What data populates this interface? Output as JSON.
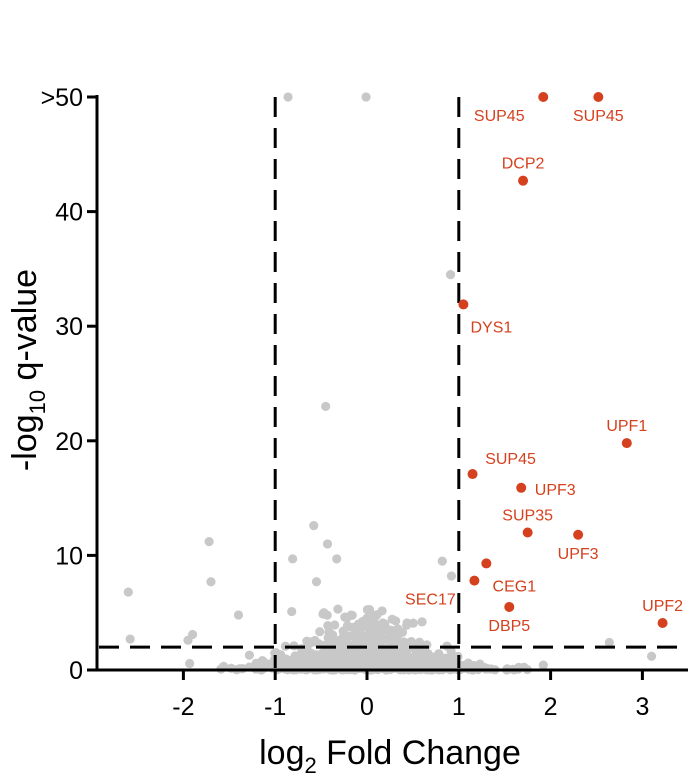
{
  "chart_data": {
    "type": "scatter",
    "title": "",
    "xlabel": {
      "base": "log",
      "sub": "2",
      "rest": " Fold Change"
    },
    "ylabel": {
      "base": "-log",
      "sub": "10",
      "rest": " q-value"
    },
    "xlim": [
      -2.7,
      3.3
    ],
    "ylim": [
      0,
      50
    ],
    "xticks": [
      {
        "value": -2,
        "label": "-2"
      },
      {
        "value": -1,
        "label": "-1"
      },
      {
        "value": 0,
        "label": "0"
      },
      {
        "value": 1,
        "label": "1"
      },
      {
        "value": 2,
        "label": "2"
      },
      {
        "value": 3,
        "label": "3"
      }
    ],
    "yticks": [
      {
        "value": 0,
        "label": "0"
      },
      {
        "value": 10,
        "label": "10"
      },
      {
        "value": 20,
        "label": "20"
      },
      {
        "value": 30,
        "label": "30"
      },
      {
        "value": 40,
        "label": "40"
      },
      {
        "value": 50,
        "label": ">50"
      }
    ],
    "thresholds": {
      "fold_change": [
        -1,
        1
      ],
      "q_value": 2
    },
    "colors": {
      "significant": "#d5411e",
      "background": "#c8c8c8",
      "axis": "#000000"
    },
    "highlighted": [
      {
        "gene": "SUP45",
        "x": 1.92,
        "y": 50.0,
        "label_pos": "below-left"
      },
      {
        "gene": "SUP45",
        "x": 2.52,
        "y": 50.0,
        "label_pos": "below"
      },
      {
        "gene": "DCP2",
        "x": 1.7,
        "y": 42.7,
        "label_pos": "above"
      },
      {
        "gene": "DYS1",
        "x": 1.05,
        "y": 31.9,
        "label_pos": "below-right"
      },
      {
        "gene": "UPF1",
        "x": 2.83,
        "y": 19.8,
        "label_pos": "above"
      },
      {
        "gene": "SUP45",
        "x": 1.15,
        "y": 17.1,
        "label_pos": "above-right"
      },
      {
        "gene": "UPF3",
        "x": 1.68,
        "y": 15.9,
        "label_pos": "right"
      },
      {
        "gene": "SUP35",
        "x": 1.75,
        "y": 12.0,
        "label_pos": "above"
      },
      {
        "gene": "UPF3",
        "x": 2.3,
        "y": 11.8,
        "label_pos": "below"
      },
      {
        "gene": "CEG1",
        "x": 1.3,
        "y": 9.3,
        "label_pos": "below-right"
      },
      {
        "gene": "SEC17",
        "x": 1.17,
        "y": 7.8,
        "label_pos": "below-left"
      },
      {
        "gene": "DBP5",
        "x": 1.55,
        "y": 5.5,
        "label_pos": "below"
      },
      {
        "gene": "UPF2",
        "x": 3.22,
        "y": 4.1,
        "label_pos": "above"
      }
    ],
    "background_points_notable": [
      {
        "x": -0.86,
        "y": 50.0
      },
      {
        "x": -0.01,
        "y": 50.0
      },
      {
        "x": 0.91,
        "y": 34.5
      },
      {
        "x": -0.45,
        "y": 23.0
      },
      {
        "x": -0.58,
        "y": 12.6
      },
      {
        "x": -1.72,
        "y": 11.2
      },
      {
        "x": -0.43,
        "y": 11.0
      },
      {
        "x": -0.33,
        "y": 9.7
      },
      {
        "x": -0.81,
        "y": 9.7
      },
      {
        "x": 0.82,
        "y": 9.5
      },
      {
        "x": -1.7,
        "y": 7.7
      },
      {
        "x": -0.55,
        "y": 7.7
      },
      {
        "x": 0.92,
        "y": 8.2
      },
      {
        "x": -2.6,
        "y": 6.8
      },
      {
        "x": -0.82,
        "y": 5.1
      },
      {
        "x": -0.47,
        "y": 5.0
      },
      {
        "x": 0.6,
        "y": 4.2
      },
      {
        "x": -1.4,
        "y": 4.8
      },
      {
        "x": 0.35,
        "y": 3.2
      },
      {
        "x": -2.58,
        "y": 2.7
      },
      {
        "x": -1.9,
        "y": 3.1
      },
      {
        "x": -1.95,
        "y": 2.6
      },
      {
        "x": 2.64,
        "y": 2.4
      },
      {
        "x": 3.1,
        "y": 1.2
      }
    ],
    "background_cloud": {
      "count": 900,
      "x_range": [
        -2.2,
        2.3
      ],
      "y_max_near_zero": 5.5
    }
  }
}
